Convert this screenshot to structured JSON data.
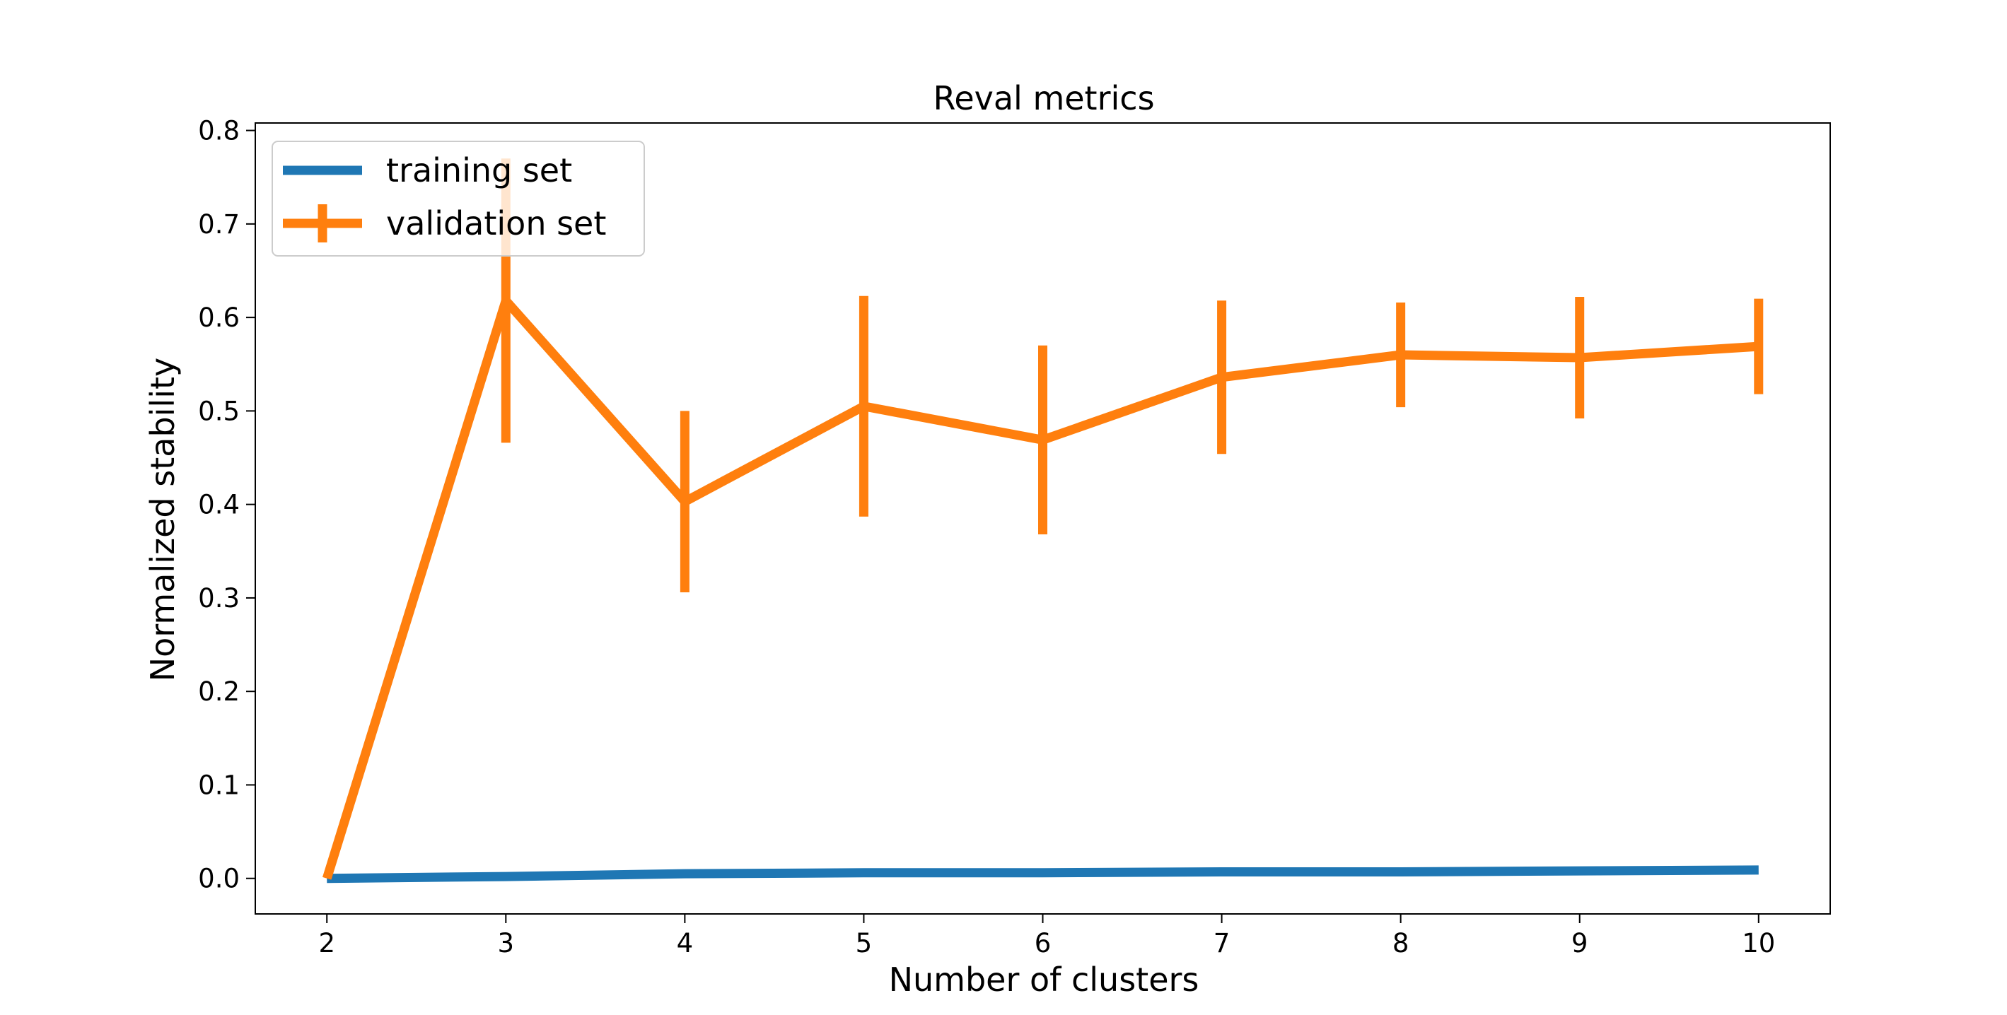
{
  "chart_data": {
    "type": "line",
    "title": "Reval metrics",
    "xlabel": "Number of clusters",
    "ylabel": "Normalized stability",
    "x": [
      2,
      3,
      4,
      5,
      6,
      7,
      8,
      9,
      10
    ],
    "xticks": [
      "2",
      "3",
      "4",
      "5",
      "6",
      "7",
      "8",
      "9",
      "10"
    ],
    "yticks": [
      "0.0",
      "0.1",
      "0.2",
      "0.3",
      "0.4",
      "0.5",
      "0.6",
      "0.7",
      "0.8"
    ],
    "xlim": [
      1.6,
      10.4
    ],
    "ylim": [
      -0.038,
      0.808
    ],
    "grid": false,
    "legend_position": "upper-left",
    "series": [
      {
        "name": "training set",
        "color": "#1f77b4",
        "values": [
          0.0,
          0.002,
          0.005,
          0.006,
          0.006,
          0.007,
          0.007,
          0.008,
          0.009
        ]
      },
      {
        "name": "validation set",
        "color": "#ff7f0e",
        "values": [
          0.0,
          0.618,
          0.403,
          0.505,
          0.469,
          0.536,
          0.56,
          0.557,
          0.569
        ],
        "error": [
          0.0,
          0.152,
          0.097,
          0.118,
          0.101,
          0.082,
          0.056,
          0.065,
          0.051
        ]
      }
    ]
  }
}
